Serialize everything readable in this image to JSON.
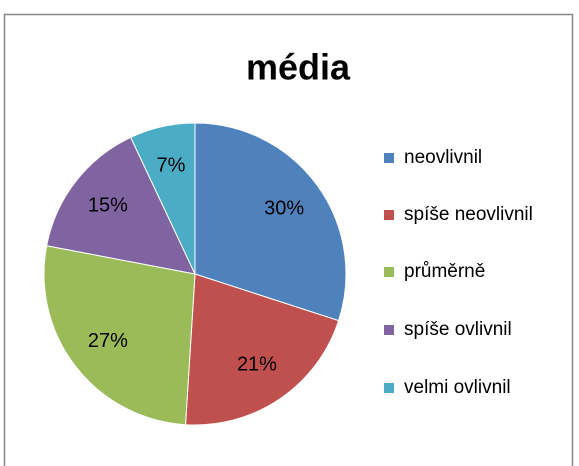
{
  "chart_data": {
    "type": "pie",
    "title": "média",
    "categories": [
      "neovlivnil",
      "spíše neovlivnil",
      "průměrně",
      "spíše ovlivnil",
      "velmi ovlivnil"
    ],
    "values": [
      30,
      21,
      27,
      15,
      7
    ],
    "value_labels": [
      "30%",
      "21%",
      "27%",
      "15%",
      "7%"
    ],
    "colors": [
      "#4f81bd",
      "#c0504d",
      "#9bbb59",
      "#8064a2",
      "#4bacc6"
    ],
    "legend": "right"
  }
}
